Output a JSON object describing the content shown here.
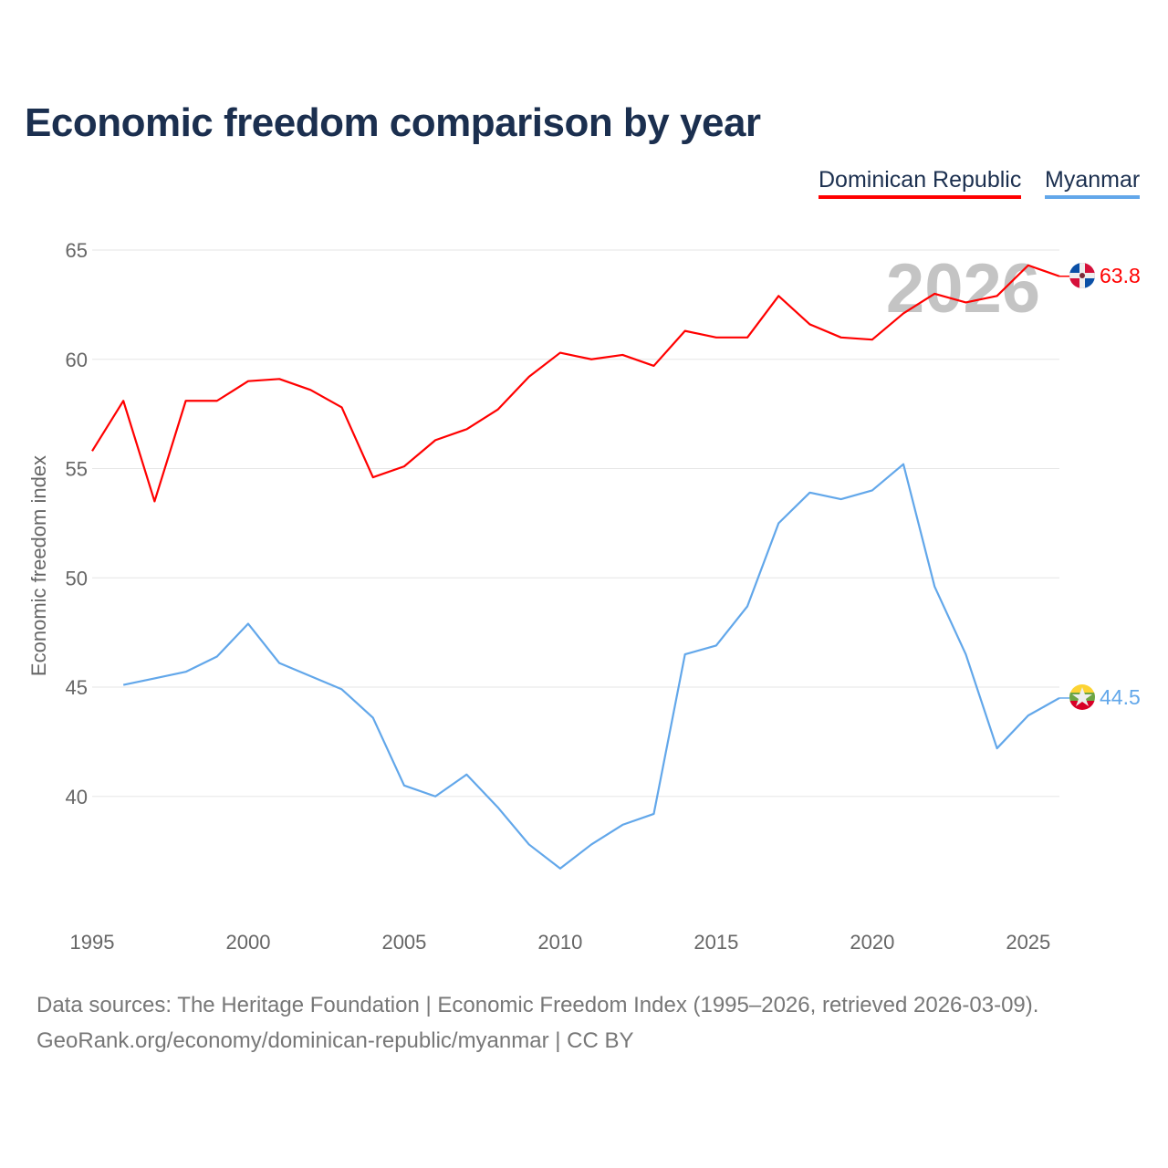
{
  "title": "Economic freedom comparison by year",
  "footer": {
    "line1": "Data sources: The Heritage Foundation | Economic Freedom Index (1995–2026, retrieved 2026-03-09).",
    "line2": "GeoRank.org/economy/dominican-republic/myanmar | CC BY"
  },
  "chart_data": {
    "type": "line",
    "title": "Economic freedom comparison by year",
    "xlabel": "",
    "ylabel": "Economic freedom index",
    "year_watermark": "2026",
    "xlim": [
      1995,
      2026
    ],
    "ylim": [
      35,
      66
    ],
    "xticks": [
      1995,
      2000,
      2005,
      2010,
      2015,
      2020,
      2025
    ],
    "yticks": [
      40,
      45,
      50,
      55,
      60,
      65
    ],
    "grid": true,
    "legend_position": "top-right",
    "series": [
      {
        "name": "Dominican Republic",
        "color": "#ff0000",
        "flag": "dominican-republic-flag-icon",
        "end_label": "63.8",
        "x": [
          1995,
          1996,
          1997,
          1998,
          1999,
          2000,
          2001,
          2002,
          2003,
          2004,
          2005,
          2006,
          2007,
          2008,
          2009,
          2010,
          2011,
          2012,
          2013,
          2014,
          2015,
          2016,
          2017,
          2018,
          2019,
          2020,
          2021,
          2022,
          2023,
          2024,
          2025,
          2026
        ],
        "values": [
          55.8,
          58.1,
          53.5,
          58.1,
          58.1,
          59.0,
          59.1,
          58.6,
          57.8,
          54.6,
          55.1,
          56.3,
          56.8,
          57.7,
          59.2,
          60.3,
          60.0,
          60.2,
          59.7,
          61.3,
          61.0,
          61.0,
          62.9,
          61.6,
          61.0,
          60.9,
          62.1,
          63.0,
          62.6,
          62.9,
          64.3,
          63.8
        ]
      },
      {
        "name": "Myanmar",
        "color": "#62a7ea",
        "flag": "myanmar-flag-icon",
        "end_label": "44.5",
        "x": [
          1996,
          1997,
          1998,
          1999,
          2000,
          2001,
          2002,
          2003,
          2004,
          2005,
          2006,
          2007,
          2008,
          2009,
          2010,
          2011,
          2012,
          2013,
          2014,
          2015,
          2016,
          2017,
          2018,
          2019,
          2020,
          2021,
          2022,
          2023,
          2024,
          2025,
          2026
        ],
        "values": [
          45.1,
          45.4,
          45.7,
          46.4,
          47.9,
          46.1,
          45.5,
          44.9,
          43.6,
          40.5,
          40.0,
          41.0,
          39.5,
          37.8,
          36.7,
          37.8,
          38.7,
          39.2,
          46.5,
          46.9,
          48.7,
          52.5,
          53.9,
          53.6,
          54.0,
          55.2,
          49.6,
          46.5,
          42.2,
          43.7,
          44.5
        ]
      }
    ]
  }
}
